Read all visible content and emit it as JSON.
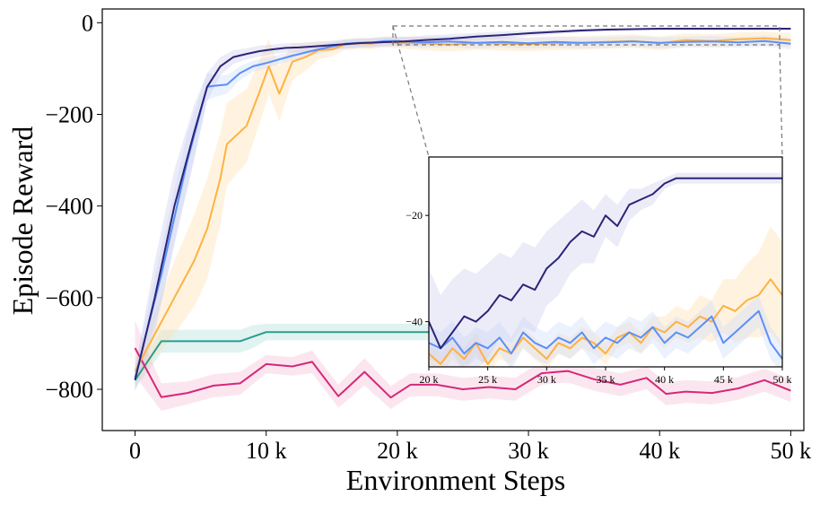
{
  "chart_data": [
    {
      "type": "line",
      "panel": "main",
      "title": "",
      "xlabel": "Environment Steps",
      "ylabel": "Episode Reward",
      "xlim": [
        -2500,
        51000
      ],
      "ylim": [
        -890,
        30
      ],
      "xticks": [
        0,
        10000,
        20000,
        30000,
        40000,
        50000
      ],
      "xtick_labels": [
        "0",
        "10 k",
        "20 k",
        "30 k",
        "40 k",
        "50 k"
      ],
      "yticks": [
        0,
        -200,
        -400,
        -600,
        -800
      ],
      "ytick_labels": [
        "0",
        "−200",
        "−400",
        "−600",
        "−800"
      ],
      "grid": false,
      "legend": "none",
      "series": [
        {
          "name": "teal",
          "color": "#2a9d8f",
          "band_color": "#a8ddd6",
          "x": [
            0,
            2000,
            4000,
            6000,
            8000,
            9000,
            10000,
            12000,
            14000,
            16000,
            18000,
            20000,
            22000,
            24000
          ],
          "y": [
            -780,
            -695,
            -695,
            -695,
            -695,
            -685,
            -675,
            -675,
            -675,
            -675,
            -675,
            -675,
            -675,
            -675
          ],
          "band": [
            20,
            25,
            25,
            25,
            25,
            25,
            18,
            18,
            18,
            18,
            18,
            18,
            18,
            18
          ]
        },
        {
          "name": "pink",
          "color": "#d6277a",
          "band_color": "#f4b6d2",
          "x": [
            0,
            2000,
            4000,
            6000,
            8000,
            10000,
            12000,
            13500,
            15500,
            17500,
            19500,
            21000,
            23000,
            25000,
            27000,
            29000,
            31000,
            33000,
            35000,
            37000,
            39000,
            40500,
            42000,
            44000,
            46000,
            48000,
            50000
          ],
          "y": [
            -710,
            -817,
            -808,
            -792,
            -787,
            -745,
            -750,
            -740,
            -815,
            -762,
            -818,
            -790,
            -790,
            -800,
            -795,
            -800,
            -765,
            -760,
            -778,
            -790,
            -775,
            -810,
            -805,
            -808,
            -798,
            -780,
            -803
          ],
          "band": [
            60,
            30,
            25,
            25,
            25,
            20,
            20,
            25,
            25,
            30,
            25,
            25,
            25,
            25,
            25,
            25,
            25,
            25,
            25,
            25,
            25,
            25,
            25,
            25,
            25,
            25,
            25
          ]
        },
        {
          "name": "orange",
          "color": "#ffb13f",
          "band_color": "#ffdca6",
          "x": [
            0,
            1500,
            3000,
            4500,
            5500,
            6500,
            7000,
            8500,
            9500,
            10200,
            11000,
            12000,
            13000,
            14000,
            15000,
            16000,
            17000,
            18000,
            19000,
            20000,
            22000,
            24000,
            26000,
            28000,
            30000,
            32000,
            34000,
            36000,
            38000,
            40000,
            42000,
            44000,
            46000,
            48000,
            50000
          ],
          "y": [
            -760,
            -680,
            -600,
            -520,
            -450,
            -340,
            -265,
            -225,
            -150,
            -95,
            -155,
            -85,
            -75,
            -60,
            -58,
            -48,
            -45,
            -46,
            -42,
            -44,
            -45,
            -48,
            -44,
            -46,
            -47,
            -45,
            -44,
            -42,
            -40,
            -45,
            -38,
            -40,
            -36,
            -34,
            -38
          ],
          "band": [
            30,
            50,
            80,
            100,
            110,
            100,
            90,
            80,
            70,
            60,
            60,
            40,
            30,
            20,
            15,
            12,
            12,
            12,
            12,
            12,
            15,
            15,
            15,
            15,
            15,
            15,
            15,
            15,
            15,
            15,
            15,
            15,
            15,
            15,
            15
          ]
        },
        {
          "name": "blue",
          "color": "#5b8ff9",
          "band_color": "#c9d7fb",
          "x": [
            0,
            2000,
            4000,
            5500,
            6000,
            7000,
            8000,
            9000,
            10000,
            11000,
            12000,
            13000,
            14000,
            15000,
            16000,
            17000,
            18000,
            19000,
            20000,
            22000,
            24000,
            26000,
            28000,
            30000,
            32000,
            34000,
            36000,
            38000,
            40000,
            42000,
            44000,
            46000,
            48000,
            50000
          ],
          "y": [
            -775,
            -550,
            -300,
            -140,
            -138,
            -135,
            -110,
            -95,
            -88,
            -80,
            -72,
            -65,
            -58,
            -52,
            -46,
            -44,
            -44,
            -40,
            -40,
            -43,
            -41,
            -44,
            -42,
            -45,
            -42,
            -44,
            -43,
            -41,
            -44,
            -42,
            -41,
            -43,
            -40,
            -46
          ],
          "band": [
            25,
            60,
            60,
            30,
            25,
            20,
            15,
            12,
            12,
            10,
            10,
            10,
            10,
            10,
            10,
            10,
            10,
            10,
            10,
            12,
            12,
            12,
            12,
            12,
            12,
            12,
            12,
            12,
            12,
            12,
            12,
            12,
            12,
            12
          ]
        },
        {
          "name": "navy",
          "color": "#2c2477",
          "band_color": "#c8c8ec",
          "x": [
            0,
            1500,
            3000,
            4500,
            5500,
            6500,
            7500,
            8500,
            9500,
            10500,
            11500,
            12500,
            13500,
            14500,
            15500,
            16500,
            17500,
            18500,
            19500,
            20500,
            22000,
            24000,
            26000,
            28000,
            30000,
            32000,
            34000,
            36000,
            38000,
            40000,
            42000,
            44000,
            46000,
            48000,
            50000
          ],
          "y": [
            -780,
            -600,
            -400,
            -240,
            -140,
            -95,
            -75,
            -68,
            -62,
            -58,
            -55,
            -54,
            -52,
            -50,
            -48,
            -46,
            -44,
            -43,
            -42,
            -41,
            -38,
            -35,
            -30,
            -27,
            -23,
            -20,
            -17,
            -15,
            -14,
            -13,
            -13,
            -13,
            -13,
            -13,
            -13
          ],
          "band": [
            25,
            80,
            80,
            60,
            30,
            20,
            15,
            12,
            12,
            10,
            10,
            10,
            10,
            10,
            10,
            10,
            10,
            10,
            10,
            10,
            10,
            10,
            8,
            8,
            6,
            5,
            4,
            3,
            2,
            2,
            2,
            2,
            2,
            2,
            2
          ]
        }
      ]
    },
    {
      "type": "line",
      "panel": "inset",
      "title": "",
      "xlabel": "",
      "ylabel": "",
      "xlim": [
        20000,
        50000
      ],
      "ylim": [
        -48.5,
        -9
      ],
      "xticks": [
        20000,
        25000,
        30000,
        35000,
        40000,
        45000,
        50000
      ],
      "xtick_labels": [
        "20 k",
        "25 k",
        "30 k",
        "35 k",
        "40 k",
        "45 k",
        "50 k"
      ],
      "yticks": [
        -20,
        -40
      ],
      "ytick_labels": [
        "−20",
        "−40"
      ],
      "grid": false,
      "legend": "none",
      "series": [
        {
          "name": "orange",
          "color": "#ffb13f",
          "band_color": "#ffdca6",
          "x": [
            20000,
            21000,
            22000,
            23000,
            24000,
            25000,
            26000,
            27000,
            28000,
            29000,
            30000,
            31000,
            32000,
            33000,
            34000,
            35000,
            36000,
            37000,
            38000,
            39000,
            40000,
            41000,
            42000,
            43000,
            44000,
            45000,
            46000,
            47000,
            48000,
            49000,
            50000
          ],
          "y": [
            -46,
            -48,
            -45,
            -47,
            -44,
            -48,
            -45,
            -46,
            -43,
            -45,
            -47,
            -44,
            -45,
            -43,
            -44,
            -46,
            -43,
            -42,
            -44,
            -41,
            -42,
            -40,
            -41,
            -39,
            -40,
            -37,
            -38,
            -36,
            -35,
            -32,
            -35
          ],
          "band": [
            2,
            2,
            2,
            2,
            2,
            2,
            2,
            2,
            2,
            2,
            2,
            2,
            2,
            2,
            2,
            2,
            2,
            2,
            2,
            2,
            3,
            3,
            3,
            4,
            4,
            5,
            6,
            7,
            8,
            10,
            10
          ]
        },
        {
          "name": "blue",
          "color": "#5b8ff9",
          "band_color": "#c9d7fb",
          "x": [
            20000,
            21000,
            22000,
            23000,
            24000,
            25000,
            26000,
            27000,
            28000,
            29000,
            30000,
            31000,
            32000,
            33000,
            34000,
            35000,
            36000,
            37000,
            38000,
            39000,
            40000,
            41000,
            42000,
            43000,
            44000,
            45000,
            46000,
            47000,
            48000,
            49000,
            50000
          ],
          "y": [
            -44,
            -45,
            -43,
            -46,
            -44,
            -45,
            -43,
            -46,
            -42,
            -44,
            -45,
            -43,
            -44,
            -42,
            -45,
            -43,
            -44,
            -42,
            -43,
            -41,
            -44,
            -42,
            -43,
            -41,
            -39,
            -44,
            -42,
            -40,
            -38,
            -44,
            -47
          ],
          "band": [
            3,
            3,
            3,
            3,
            3,
            3,
            3,
            3,
            3,
            3,
            3,
            3,
            3,
            3,
            3,
            3,
            3,
            3,
            3,
            3,
            3,
            3,
            3,
            3,
            3,
            3,
            3,
            3,
            3,
            3,
            3
          ]
        },
        {
          "name": "navy",
          "color": "#2c2477",
          "band_color": "#c8c8ec",
          "x": [
            20000,
            21000,
            22000,
            23000,
            24000,
            25000,
            26000,
            27000,
            28000,
            29000,
            30000,
            31000,
            32000,
            33000,
            34000,
            35000,
            36000,
            37000,
            38000,
            39000,
            40000,
            41000,
            42000,
            43000,
            44000,
            45000,
            46000,
            47000,
            48000,
            49000,
            50000
          ],
          "y": [
            -40,
            -45,
            -42,
            -39,
            -40,
            -38,
            -35,
            -36,
            -33,
            -34,
            -30,
            -28,
            -25,
            -23,
            -24,
            -20,
            -22,
            -18,
            -17,
            -16,
            -14,
            -13,
            -13,
            -13,
            -13,
            -13,
            -13,
            -13,
            -13,
            -13,
            -13
          ],
          "band": [
            10,
            10,
            10,
            9,
            9,
            9,
            8,
            8,
            8,
            8,
            7,
            7,
            6,
            6,
            5,
            4,
            4,
            3,
            2,
            2,
            1,
            1,
            1,
            1,
            1,
            1,
            1,
            1,
            1,
            1,
            1
          ]
        }
      ]
    }
  ]
}
